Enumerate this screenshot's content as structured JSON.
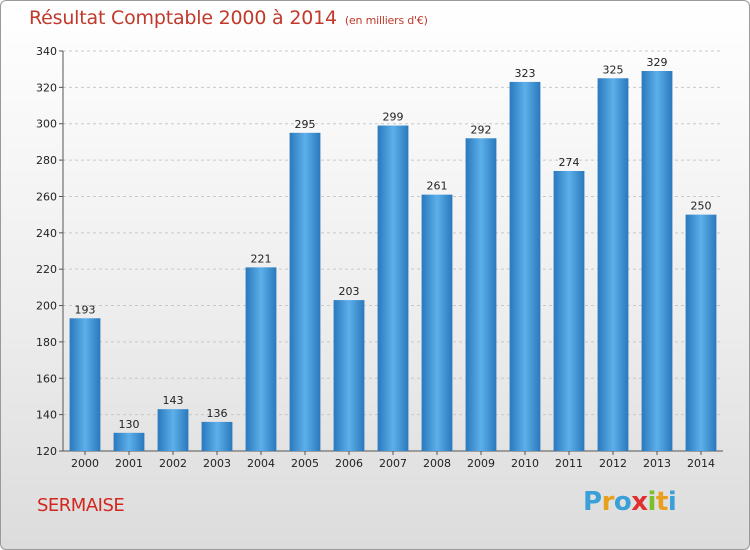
{
  "title": {
    "main": "Résultat Comptable 2000 à 2014",
    "unit": "(en milliers d'€)"
  },
  "city": "SERMAISE",
  "logo": {
    "letters": [
      "P",
      "r",
      "o",
      "x",
      "i",
      "t",
      "i"
    ],
    "colors": [
      "#3aa0d8",
      "#e8a020",
      "#3aa0d8",
      "#e03030",
      "#7bbf2a",
      "#e8a020",
      "#3aa0d8"
    ]
  },
  "colors": {
    "bar": "#3a8fd4",
    "bar_light": "#5cb0ea",
    "bar_dark": "#2a78bd",
    "grid": "#c8c8c8"
  },
  "chart_data": {
    "type": "bar",
    "categories": [
      "2000",
      "2001",
      "2002",
      "2003",
      "2004",
      "2005",
      "2006",
      "2007",
      "2008",
      "2009",
      "2010",
      "2011",
      "2012",
      "2013",
      "2014"
    ],
    "values": [
      193,
      130,
      143,
      136,
      221,
      295,
      203,
      299,
      261,
      292,
      323,
      274,
      325,
      329,
      250
    ],
    "data_labels": [
      "193",
      "130",
      "143",
      "136",
      "221",
      "295",
      "203",
      "299",
      "261",
      "292",
      "323",
      "274",
      "325",
      "329",
      "250"
    ],
    "yticks": [
      120,
      140,
      160,
      180,
      200,
      220,
      240,
      260,
      280,
      300,
      320,
      340
    ],
    "ylim": [
      120,
      340
    ],
    "grid": true,
    "xlabel": "",
    "ylabel": ""
  }
}
